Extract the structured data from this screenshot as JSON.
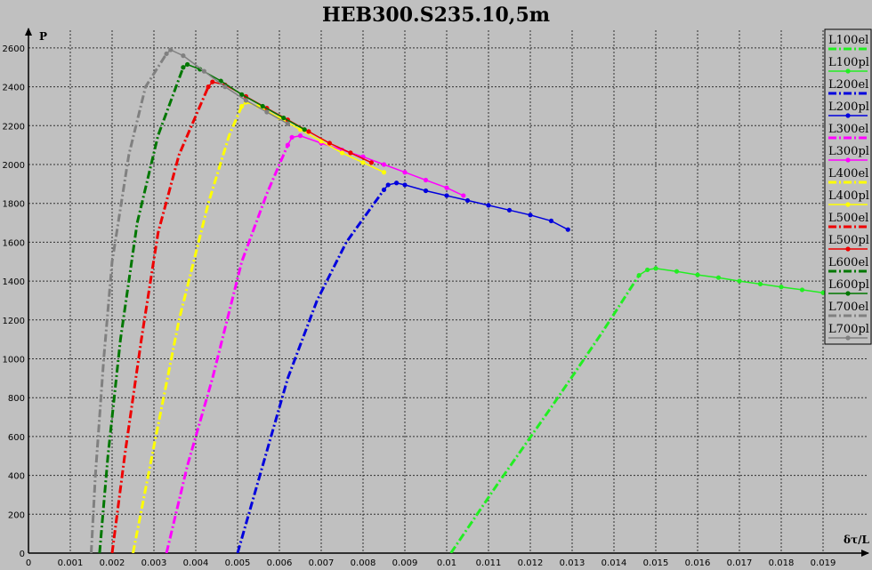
{
  "chart_data": {
    "type": "line",
    "title": "HEB300.S235.10,5m",
    "xlabel": "δτ/L",
    "ylabel": "P",
    "xlim": [
      0,
      0.02
    ],
    "ylim": [
      0,
      2700
    ],
    "grid": true,
    "legend_position": "right",
    "background_color": "#c0c0c0",
    "x_ticks": [
      "0",
      "0.001",
      "0.002",
      "0.003",
      "0.004",
      "0.005",
      "0.006",
      "0.007",
      "0.008",
      "0.009",
      "0.01",
      "0.011",
      "0.012",
      "0.013",
      "0.014",
      "0.015",
      "0.016",
      "0.017",
      "0.018",
      "0.019"
    ],
    "y_ticks": [
      "0",
      "200",
      "400",
      "600",
      "800",
      "1000",
      "1200",
      "1400",
      "1600",
      "1800",
      "2000",
      "2200",
      "2400",
      "2600"
    ],
    "series": [
      {
        "name": "L100el",
        "color": "#22ee22",
        "style": "elastic",
        "points": [
          [
            0.0101,
            0
          ],
          [
            0.0112,
            350
          ],
          [
            0.0125,
            750
          ],
          [
            0.0137,
            1130
          ],
          [
            0.0146,
            1430
          ]
        ]
      },
      {
        "name": "L100pl",
        "color": "#22ee22",
        "style": "plastic",
        "points": [
          [
            0.0146,
            1430
          ],
          [
            0.0148,
            1458
          ],
          [
            0.015,
            1465
          ],
          [
            0.0155,
            1450
          ],
          [
            0.016,
            1432
          ],
          [
            0.0165,
            1418
          ],
          [
            0.017,
            1400
          ],
          [
            0.0175,
            1385
          ],
          [
            0.018,
            1370
          ],
          [
            0.0185,
            1355
          ],
          [
            0.019,
            1340
          ],
          [
            0.0195,
            1330
          ],
          [
            0.0199,
            1322
          ]
        ]
      },
      {
        "name": "L200el",
        "color": "#0000dd",
        "style": "elastic",
        "points": [
          [
            0.005,
            0
          ],
          [
            0.0056,
            450
          ],
          [
            0.0062,
            900
          ],
          [
            0.0069,
            1300
          ],
          [
            0.0076,
            1600
          ],
          [
            0.0085,
            1870
          ]
        ]
      },
      {
        "name": "L200pl",
        "color": "#0000dd",
        "style": "plastic",
        "points": [
          [
            0.0085,
            1870
          ],
          [
            0.0086,
            1895
          ],
          [
            0.0088,
            1905
          ],
          [
            0.009,
            1895
          ],
          [
            0.0095,
            1865
          ],
          [
            0.01,
            1840
          ],
          [
            0.0105,
            1815
          ],
          [
            0.011,
            1790
          ],
          [
            0.0115,
            1765
          ],
          [
            0.012,
            1740
          ],
          [
            0.0125,
            1710
          ],
          [
            0.0129,
            1665
          ]
        ]
      },
      {
        "name": "L300el",
        "color": "#ff00ff",
        "style": "elastic",
        "points": [
          [
            0.0033,
            0
          ],
          [
            0.0038,
            450
          ],
          [
            0.0044,
            900
          ],
          [
            0.0051,
            1500
          ],
          [
            0.0057,
            1850
          ],
          [
            0.0062,
            2100
          ]
        ]
      },
      {
        "name": "L300pl",
        "color": "#ff00ff",
        "style": "plastic",
        "points": [
          [
            0.0062,
            2100
          ],
          [
            0.0063,
            2140
          ],
          [
            0.0065,
            2148
          ],
          [
            0.007,
            2110
          ],
          [
            0.0075,
            2075
          ],
          [
            0.008,
            2040
          ],
          [
            0.0085,
            2000
          ],
          [
            0.009,
            1960
          ],
          [
            0.0095,
            1920
          ],
          [
            0.01,
            1880
          ],
          [
            0.0104,
            1840
          ]
        ]
      },
      {
        "name": "L400el",
        "color": "#ffff00",
        "style": "elastic",
        "points": [
          [
            0.0025,
            0
          ],
          [
            0.003,
            550
          ],
          [
            0.0036,
            1200
          ],
          [
            0.0043,
            1800
          ],
          [
            0.0048,
            2150
          ],
          [
            0.0051,
            2300
          ]
        ]
      },
      {
        "name": "L400pl",
        "color": "#ffff00",
        "style": "plastic",
        "points": [
          [
            0.0051,
            2300
          ],
          [
            0.0052,
            2320
          ],
          [
            0.0055,
            2300
          ],
          [
            0.006,
            2240
          ],
          [
            0.0065,
            2180
          ],
          [
            0.007,
            2120
          ],
          [
            0.0075,
            2060
          ],
          [
            0.008,
            2010
          ],
          [
            0.0085,
            1960
          ]
        ]
      },
      {
        "name": "L500el",
        "color": "#ee0000",
        "style": "elastic",
        "points": [
          [
            0.002,
            0
          ],
          [
            0.0023,
            500
          ],
          [
            0.0027,
            1100
          ],
          [
            0.0031,
            1650
          ],
          [
            0.0036,
            2050
          ],
          [
            0.0043,
            2400
          ]
        ]
      },
      {
        "name": "L500pl",
        "color": "#ee0000",
        "style": "plastic",
        "points": [
          [
            0.0043,
            2400
          ],
          [
            0.0044,
            2425
          ],
          [
            0.0047,
            2410
          ],
          [
            0.0052,
            2350
          ],
          [
            0.0057,
            2290
          ],
          [
            0.0062,
            2230
          ],
          [
            0.0067,
            2170
          ],
          [
            0.0072,
            2110
          ],
          [
            0.0077,
            2060
          ],
          [
            0.0082,
            2010
          ]
        ]
      },
      {
        "name": "L600el",
        "color": "#007700",
        "style": "elastic",
        "points": [
          [
            0.0017,
            0
          ],
          [
            0.0019,
            500
          ],
          [
            0.0022,
            1100
          ],
          [
            0.0026,
            1700
          ],
          [
            0.0031,
            2150
          ],
          [
            0.0037,
            2500
          ]
        ]
      },
      {
        "name": "L600pl",
        "color": "#007700",
        "style": "plastic",
        "points": [
          [
            0.0037,
            2500
          ],
          [
            0.0038,
            2515
          ],
          [
            0.0041,
            2490
          ],
          [
            0.0046,
            2430
          ],
          [
            0.0051,
            2360
          ],
          [
            0.0056,
            2300
          ],
          [
            0.0061,
            2240
          ],
          [
            0.0066,
            2180
          ]
        ]
      },
      {
        "name": "L700el",
        "color": "#808080",
        "style": "elastic",
        "points": [
          [
            0.0015,
            0
          ],
          [
            0.0016,
            400
          ],
          [
            0.0018,
            1000
          ],
          [
            0.002,
            1500
          ],
          [
            0.0024,
            2050
          ],
          [
            0.0028,
            2400
          ],
          [
            0.0033,
            2570
          ]
        ]
      },
      {
        "name": "L700pl",
        "color": "#808080",
        "style": "plastic",
        "points": [
          [
            0.0033,
            2570
          ],
          [
            0.0034,
            2590
          ],
          [
            0.0037,
            2560
          ],
          [
            0.0042,
            2480
          ],
          [
            0.0047,
            2400
          ],
          [
            0.0052,
            2330
          ],
          [
            0.0057,
            2270
          ],
          [
            0.0062,
            2210
          ]
        ]
      }
    ]
  }
}
